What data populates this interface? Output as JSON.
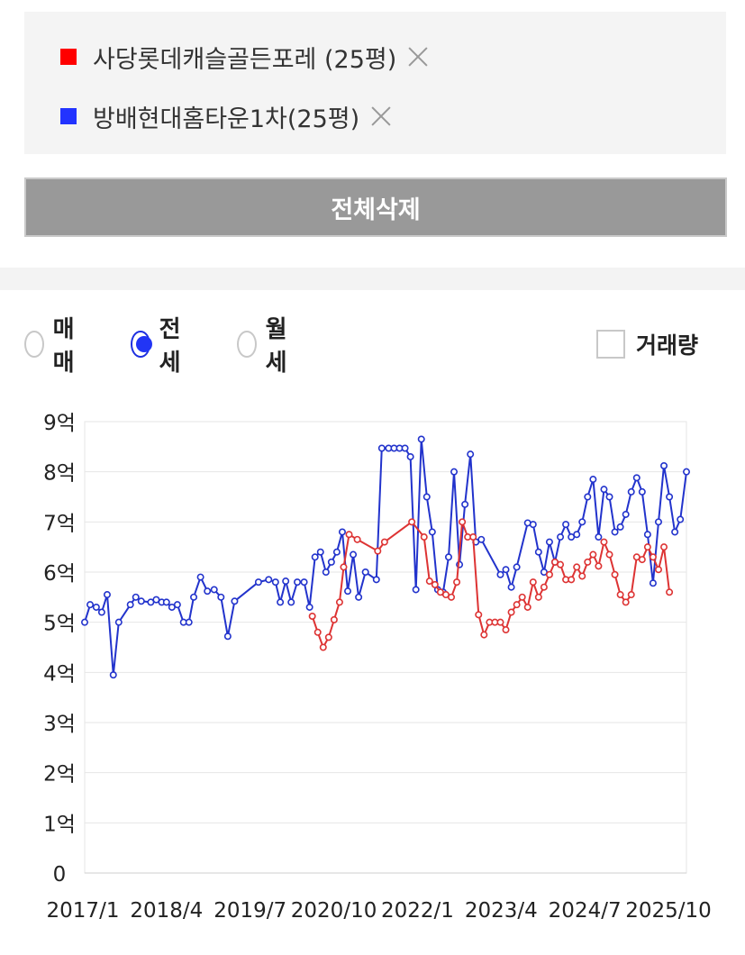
{
  "compare_list": {
    "items": [
      {
        "label": "사당롯데캐슬골든포레 (25평)",
        "color": "#ff0000"
      },
      {
        "label": "방배현대홈타운1차(25평)",
        "color": "#2233ff"
      }
    ]
  },
  "delete_all_label": "전체삭제",
  "deal_type": {
    "options": [
      {
        "label": "매매",
        "selected": false
      },
      {
        "label": "전세",
        "selected": true
      },
      {
        "label": "월세",
        "selected": false
      }
    ]
  },
  "volume_toggle": {
    "label": "거래량",
    "checked": false
  },
  "chart_data": {
    "type": "line",
    "y_tick_labels": [
      "0",
      "1억",
      "2억",
      "3억",
      "4억",
      "5억",
      "6억",
      "7억",
      "8억",
      "9억"
    ],
    "ylim": [
      0,
      9
    ],
    "x_tick_labels": [
      "2017/1",
      "2018/4",
      "2019/7",
      "2020/10",
      "2022/1",
      "2023/4",
      "2024/7",
      "2025/10"
    ],
    "xlim": [
      2017.0,
      2025.83
    ],
    "series": [
      {
        "color": "#2233cc",
        "points": [
          [
            2017.0,
            5.0
          ],
          [
            2017.08,
            5.35
          ],
          [
            2017.17,
            5.3
          ],
          [
            2017.25,
            5.2
          ],
          [
            2017.33,
            5.55
          ],
          [
            2017.42,
            3.95
          ],
          [
            2017.5,
            5.0
          ],
          [
            2017.67,
            5.35
          ],
          [
            2017.75,
            5.5
          ],
          [
            2017.83,
            5.42
          ],
          [
            2017.97,
            5.4
          ],
          [
            2018.05,
            5.45
          ],
          [
            2018.13,
            5.4
          ],
          [
            2018.2,
            5.4
          ],
          [
            2018.28,
            5.3
          ],
          [
            2018.36,
            5.35
          ],
          [
            2018.45,
            5.0
          ],
          [
            2018.53,
            5.0
          ],
          [
            2018.6,
            5.5
          ],
          [
            2018.7,
            5.9
          ],
          [
            2018.8,
            5.62
          ],
          [
            2018.9,
            5.65
          ],
          [
            2019.0,
            5.5
          ],
          [
            2019.1,
            4.72
          ],
          [
            2019.2,
            5.42
          ],
          [
            2019.55,
            5.8
          ],
          [
            2019.7,
            5.85
          ],
          [
            2019.8,
            5.8
          ],
          [
            2019.87,
            5.4
          ],
          [
            2019.95,
            5.82
          ],
          [
            2020.03,
            5.4
          ],
          [
            2020.12,
            5.8
          ],
          [
            2020.22,
            5.8
          ],
          [
            2020.3,
            5.3
          ],
          [
            2020.38,
            6.3
          ],
          [
            2020.46,
            6.4
          ],
          [
            2020.54,
            6.0
          ],
          [
            2020.62,
            6.2
          ],
          [
            2020.7,
            6.4
          ],
          [
            2020.78,
            6.8
          ],
          [
            2020.86,
            5.62
          ],
          [
            2020.94,
            6.35
          ],
          [
            2021.02,
            5.5
          ],
          [
            2021.12,
            6.0
          ],
          [
            2021.28,
            5.85
          ],
          [
            2021.36,
            8.47
          ],
          [
            2021.46,
            8.47
          ],
          [
            2021.54,
            8.47
          ],
          [
            2021.62,
            8.47
          ],
          [
            2021.7,
            8.47
          ],
          [
            2021.78,
            8.3
          ],
          [
            2021.86,
            5.65
          ],
          [
            2021.94,
            8.65
          ],
          [
            2022.02,
            7.5
          ],
          [
            2022.1,
            6.8
          ],
          [
            2022.18,
            5.65
          ],
          [
            2022.26,
            5.6
          ],
          [
            2022.34,
            6.3
          ],
          [
            2022.42,
            8.0
          ],
          [
            2022.5,
            6.15
          ],
          [
            2022.58,
            7.35
          ],
          [
            2022.66,
            8.35
          ],
          [
            2022.74,
            6.6
          ],
          [
            2022.82,
            6.65
          ],
          [
            2023.1,
            5.95
          ],
          [
            2023.18,
            6.05
          ],
          [
            2023.26,
            5.7
          ],
          [
            2023.34,
            6.1
          ],
          [
            2023.5,
            6.98
          ],
          [
            2023.58,
            6.95
          ],
          [
            2023.66,
            6.4
          ],
          [
            2023.74,
            6.0
          ],
          [
            2023.82,
            6.6
          ],
          [
            2023.9,
            6.2
          ],
          [
            2023.98,
            6.7
          ],
          [
            2024.06,
            6.95
          ],
          [
            2024.14,
            6.7
          ],
          [
            2024.22,
            6.75
          ],
          [
            2024.3,
            7.0
          ],
          [
            2024.38,
            7.5
          ],
          [
            2024.46,
            7.85
          ],
          [
            2024.54,
            6.7
          ],
          [
            2024.62,
            7.65
          ],
          [
            2024.7,
            7.5
          ],
          [
            2024.78,
            6.8
          ],
          [
            2024.86,
            6.9
          ],
          [
            2024.94,
            7.15
          ],
          [
            2025.02,
            7.6
          ],
          [
            2025.1,
            7.88
          ],
          [
            2025.18,
            7.6
          ],
          [
            2025.26,
            6.75
          ],
          [
            2025.34,
            5.78
          ],
          [
            2025.42,
            7.0
          ],
          [
            2025.5,
            8.12
          ],
          [
            2025.58,
            7.5
          ],
          [
            2025.66,
            6.8
          ],
          [
            2025.74,
            7.05
          ],
          [
            2025.83,
            8.0
          ]
        ]
      },
      {
        "color": "#dd3333",
        "points": [
          [
            2020.34,
            5.12
          ],
          [
            2020.42,
            4.8
          ],
          [
            2020.5,
            4.5
          ],
          [
            2020.58,
            4.7
          ],
          [
            2020.66,
            5.05
          ],
          [
            2020.74,
            5.4
          ],
          [
            2020.8,
            6.1
          ],
          [
            2020.88,
            6.75
          ],
          [
            2021.0,
            6.65
          ],
          [
            2021.3,
            6.42
          ],
          [
            2021.4,
            6.6
          ],
          [
            2021.8,
            7.0
          ],
          [
            2021.98,
            6.7
          ],
          [
            2022.06,
            5.82
          ],
          [
            2022.14,
            5.75
          ],
          [
            2022.22,
            5.6
          ],
          [
            2022.3,
            5.55
          ],
          [
            2022.38,
            5.5
          ],
          [
            2022.46,
            5.8
          ],
          [
            2022.54,
            7.0
          ],
          [
            2022.62,
            6.7
          ],
          [
            2022.7,
            6.7
          ],
          [
            2022.78,
            5.15
          ],
          [
            2022.86,
            4.75
          ],
          [
            2022.94,
            5.0
          ],
          [
            2023.02,
            5.0
          ],
          [
            2023.1,
            5.0
          ],
          [
            2023.18,
            4.85
          ],
          [
            2023.26,
            5.2
          ],
          [
            2023.34,
            5.35
          ],
          [
            2023.42,
            5.5
          ],
          [
            2023.5,
            5.3
          ],
          [
            2023.58,
            5.8
          ],
          [
            2023.66,
            5.5
          ],
          [
            2023.74,
            5.7
          ],
          [
            2023.82,
            5.95
          ],
          [
            2023.9,
            6.2
          ],
          [
            2023.98,
            6.15
          ],
          [
            2024.06,
            5.85
          ],
          [
            2024.14,
            5.85
          ],
          [
            2024.22,
            6.1
          ],
          [
            2024.3,
            5.92
          ],
          [
            2024.38,
            6.2
          ],
          [
            2024.46,
            6.35
          ],
          [
            2024.54,
            6.12
          ],
          [
            2024.62,
            6.6
          ],
          [
            2024.7,
            6.35
          ],
          [
            2024.78,
            5.95
          ],
          [
            2024.86,
            5.55
          ],
          [
            2024.94,
            5.4
          ],
          [
            2025.02,
            5.55
          ],
          [
            2025.1,
            6.3
          ],
          [
            2025.18,
            6.25
          ],
          [
            2025.26,
            6.5
          ],
          [
            2025.34,
            6.3
          ],
          [
            2025.42,
            6.05
          ],
          [
            2025.5,
            6.5
          ],
          [
            2025.58,
            5.6
          ]
        ]
      }
    ]
  }
}
